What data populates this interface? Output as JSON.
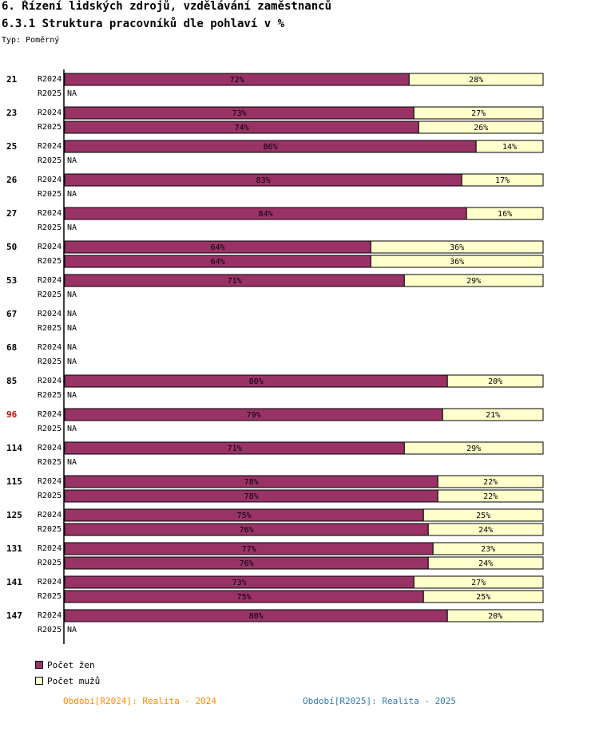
{
  "header": {
    "title": "6. Řízení lidských zdrojů, vzdělávání zaměstnanců",
    "subtitle": "6.3.1 Struktura pracovníků dle pohlaví v %",
    "type_label": "Typ: Poměrný"
  },
  "legend": {
    "women_label": "Počet žen",
    "men_label": "Počet mužů"
  },
  "periods": {
    "p2024": "Období[R2024]: Realita - 2024",
    "p2025": "Období[R2025]: Realita - 2025"
  },
  "colors": {
    "women": "#993366",
    "men": "#ffffcc",
    "highlight": "#cc0000",
    "period2024": "#ff8800",
    "period2025": "#3377aa"
  },
  "chart_data": {
    "type": "bar",
    "orientation": "horizontal",
    "stacked": true,
    "unit": "%",
    "xlim": [
      0,
      100
    ],
    "series_names": [
      "Počet žen",
      "Počet mužů"
    ],
    "na_label": "NA",
    "groups": [
      {
        "id": "21",
        "rows": [
          {
            "label": "R2024",
            "women": 72,
            "men": 28
          },
          {
            "label": "R2025",
            "women": null,
            "men": null
          }
        ]
      },
      {
        "id": "23",
        "rows": [
          {
            "label": "R2024",
            "women": 73,
            "men": 27
          },
          {
            "label": "R2025",
            "women": 74,
            "men": 26
          }
        ]
      },
      {
        "id": "25",
        "rows": [
          {
            "label": "R2024",
            "women": 86,
            "men": 14
          },
          {
            "label": "R2025",
            "women": null,
            "men": null
          }
        ]
      },
      {
        "id": "26",
        "rows": [
          {
            "label": "R2024",
            "women": 83,
            "men": 17
          },
          {
            "label": "R2025",
            "women": null,
            "men": null
          }
        ]
      },
      {
        "id": "27",
        "rows": [
          {
            "label": "R2024",
            "women": 84,
            "men": 16
          },
          {
            "label": "R2025",
            "women": null,
            "men": null
          }
        ]
      },
      {
        "id": "50",
        "rows": [
          {
            "label": "R2024",
            "women": 64,
            "men": 36
          },
          {
            "label": "R2025",
            "women": 64,
            "men": 36
          }
        ]
      },
      {
        "id": "53",
        "rows": [
          {
            "label": "R2024",
            "women": 71,
            "men": 29
          },
          {
            "label": "R2025",
            "women": null,
            "men": null
          }
        ]
      },
      {
        "id": "67",
        "rows": [
          {
            "label": "R2024",
            "women": null,
            "men": null
          },
          {
            "label": "R2025",
            "women": null,
            "men": null
          }
        ]
      },
      {
        "id": "68",
        "rows": [
          {
            "label": "R2024",
            "women": null,
            "men": null
          },
          {
            "label": "R2025",
            "women": null,
            "men": null
          }
        ]
      },
      {
        "id": "85",
        "rows": [
          {
            "label": "R2024",
            "women": 80,
            "men": 20
          },
          {
            "label": "R2025",
            "women": null,
            "men": null
          }
        ]
      },
      {
        "id": "96",
        "highlight": true,
        "rows": [
          {
            "label": "R2024",
            "women": 79,
            "men": 21
          },
          {
            "label": "R2025",
            "women": null,
            "men": null
          }
        ]
      },
      {
        "id": "114",
        "rows": [
          {
            "label": "R2024",
            "women": 71,
            "men": 29
          },
          {
            "label": "R2025",
            "women": null,
            "men": null
          }
        ]
      },
      {
        "id": "115",
        "rows": [
          {
            "label": "R2024",
            "women": 78,
            "men": 22
          },
          {
            "label": "R2025",
            "women": 78,
            "men": 22
          }
        ]
      },
      {
        "id": "125",
        "rows": [
          {
            "label": "R2024",
            "women": 75,
            "men": 25
          },
          {
            "label": "R2025",
            "women": 76,
            "men": 24
          }
        ]
      },
      {
        "id": "131",
        "rows": [
          {
            "label": "R2024",
            "women": 77,
            "men": 23
          },
          {
            "label": "R2025",
            "women": 76,
            "men": 24
          }
        ]
      },
      {
        "id": "141",
        "rows": [
          {
            "label": "R2024",
            "women": 73,
            "men": 27
          },
          {
            "label": "R2025",
            "women": 75,
            "men": 25
          }
        ]
      },
      {
        "id": "147",
        "rows": [
          {
            "label": "R2024",
            "women": 80,
            "men": 20
          },
          {
            "label": "R2025",
            "women": null,
            "men": null
          }
        ]
      }
    ]
  }
}
